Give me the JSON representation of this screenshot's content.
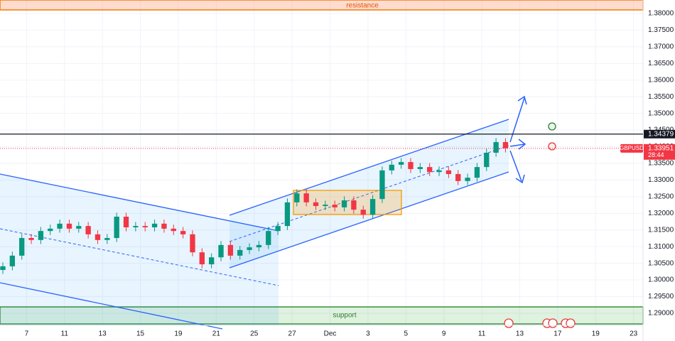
{
  "chart_data": {
    "type": "candlestick",
    "symbol": "GBPUSD",
    "countdown": "28:44",
    "last_price": 1.33951,
    "level": 1.34379,
    "annotations": [
      "resistance",
      "support"
    ],
    "up_color": "#089981",
    "down_color": "#f23645",
    "grid": true,
    "xlim": [
      -1.4,
      32.5
    ],
    "ylim": [
      1.28637,
      1.38405
    ],
    "xticks": [
      {
        "value": 0,
        "label": "7"
      },
      {
        "value": 2,
        "label": "11"
      },
      {
        "value": 4,
        "label": "13"
      },
      {
        "value": 6,
        "label": "15"
      },
      {
        "value": 8,
        "label": "19"
      },
      {
        "value": 10,
        "label": "21"
      },
      {
        "value": 12,
        "label": "25"
      },
      {
        "value": 14,
        "label": "27"
      },
      {
        "value": 16,
        "label": "Dec"
      },
      {
        "value": 18,
        "label": "3"
      },
      {
        "value": 20,
        "label": "5"
      },
      {
        "value": 22,
        "label": "9"
      },
      {
        "value": 24,
        "label": "11"
      },
      {
        "value": 26,
        "label": "13"
      },
      {
        "value": 28,
        "label": "17"
      },
      {
        "value": 30,
        "label": "19"
      },
      {
        "value": 32,
        "label": "23"
      }
    ],
    "yticks": [
      {
        "value": 1.29,
        "label": "1.29000"
      },
      {
        "value": 1.295,
        "label": "1.29500"
      },
      {
        "value": 1.3,
        "label": "1.30000"
      },
      {
        "value": 1.305,
        "label": "1.30500"
      },
      {
        "value": 1.31,
        "label": "1.31000"
      },
      {
        "value": 1.315,
        "label": "1.31500"
      },
      {
        "value": 1.32,
        "label": "1.32000"
      },
      {
        "value": 1.325,
        "label": "1.32500"
      },
      {
        "value": 1.33,
        "label": "1.33000"
      },
      {
        "value": 1.335,
        "label": "1.33500"
      },
      {
        "value": 1.34,
        "label": "1.34000"
      },
      {
        "value": 1.345,
        "label": "1.34500"
      },
      {
        "value": 1.35,
        "label": "1.35000"
      },
      {
        "value": 1.355,
        "label": "1.35500"
      },
      {
        "value": 1.36,
        "label": "1.36000"
      },
      {
        "value": 1.365,
        "label": "1.36500"
      },
      {
        "value": 1.37,
        "label": "1.37000"
      },
      {
        "value": 1.375,
        "label": "1.37500"
      },
      {
        "value": 1.38,
        "label": "1.38000"
      }
    ],
    "x": [
      -1.25,
      -0.75,
      -0.25,
      0.25,
      0.75,
      1.25,
      1.75,
      2.25,
      2.75,
      3.25,
      3.75,
      4.25,
      4.75,
      5.25,
      5.75,
      6.25,
      6.75,
      7.25,
      7.75,
      8.25,
      8.75,
      9.25,
      9.75,
      10.25,
      10.75,
      11.25,
      11.75,
      12.25,
      12.75,
      13.25,
      13.75,
      14.25,
      14.75,
      15.25,
      15.75,
      16.25,
      16.75,
      17.25,
      17.75,
      18.25,
      18.75,
      19.25,
      19.75,
      20.25,
      20.75,
      21.25,
      21.75,
      22.25,
      22.75,
      23.25,
      23.75,
      24.25,
      24.75,
      25.25
    ],
    "open": [
      1.303,
      1.3041,
      1.3073,
      1.3126,
      1.312,
      1.3147,
      1.3154,
      1.3169,
      1.3154,
      1.3162,
      1.3137,
      1.312,
      1.3126,
      1.319,
      1.3158,
      1.3162,
      1.3158,
      1.3169,
      1.3154,
      1.3147,
      1.3137,
      1.3083,
      1.3047,
      1.3068,
      1.3105,
      1.3073,
      1.309,
      1.3098,
      1.3105,
      1.3147,
      1.3162,
      1.3233,
      1.326,
      1.3233,
      1.3222,
      1.3226,
      1.3218,
      1.3239,
      1.3211,
      1.3196,
      1.3243,
      1.3329,
      1.3346,
      1.3354,
      1.3333,
      1.3339,
      1.3324,
      1.3329,
      1.3318,
      1.3297,
      1.3307,
      1.3339,
      1.3382,
      1.3414
    ],
    "high": [
      1.3053,
      1.3085,
      1.3138,
      1.3138,
      1.3159,
      1.3166,
      1.3181,
      1.3181,
      1.3174,
      1.3174,
      1.3149,
      1.3138,
      1.3202,
      1.3202,
      1.3174,
      1.3174,
      1.3181,
      1.3181,
      1.3166,
      1.3159,
      1.3149,
      1.3095,
      1.308,
      1.3117,
      1.3117,
      1.3102,
      1.311,
      1.3117,
      1.3159,
      1.3174,
      1.3245,
      1.3272,
      1.3272,
      1.3245,
      1.3238,
      1.3238,
      1.3251,
      1.3251,
      1.3223,
      1.3255,
      1.3341,
      1.3358,
      1.3366,
      1.3366,
      1.3351,
      1.3351,
      1.3341,
      1.3341,
      1.333,
      1.3319,
      1.3351,
      1.3394,
      1.3426,
      1.3426
    ],
    "low": [
      1.3018,
      1.3029,
      1.3061,
      1.3108,
      1.3108,
      1.3135,
      1.3142,
      1.3142,
      1.3142,
      1.3125,
      1.3108,
      1.3108,
      1.3114,
      1.3146,
      1.3146,
      1.3146,
      1.3146,
      1.3142,
      1.3135,
      1.3125,
      1.3071,
      1.3035,
      1.3035,
      1.3056,
      1.3061,
      1.3061,
      1.3078,
      1.3086,
      1.3093,
      1.3135,
      1.315,
      1.3221,
      1.3221,
      1.321,
      1.321,
      1.3206,
      1.3206,
      1.3199,
      1.3184,
      1.3184,
      1.3231,
      1.3317,
      1.3334,
      1.3321,
      1.3321,
      1.3312,
      1.3312,
      1.3306,
      1.3285,
      1.3285,
      1.3295,
      1.3327,
      1.337,
      1.3383
    ],
    "close": [
      1.3041,
      1.3073,
      1.3126,
      1.312,
      1.3147,
      1.3154,
      1.3169,
      1.3154,
      1.3162,
      1.3137,
      1.312,
      1.3126,
      1.319,
      1.3158,
      1.3162,
      1.3158,
      1.3169,
      1.3154,
      1.3147,
      1.3137,
      1.3083,
      1.3047,
      1.3068,
      1.3105,
      1.3073,
      1.309,
      1.3098,
      1.3105,
      1.3147,
      1.3162,
      1.3233,
      1.326,
      1.3233,
      1.3222,
      1.3226,
      1.3218,
      1.3239,
      1.3211,
      1.3196,
      1.3243,
      1.3329,
      1.3346,
      1.3354,
      1.3333,
      1.3339,
      1.3324,
      1.3329,
      1.3318,
      1.3297,
      1.3307,
      1.3339,
      1.3382,
      1.3414,
      1.33951
    ]
  }
}
